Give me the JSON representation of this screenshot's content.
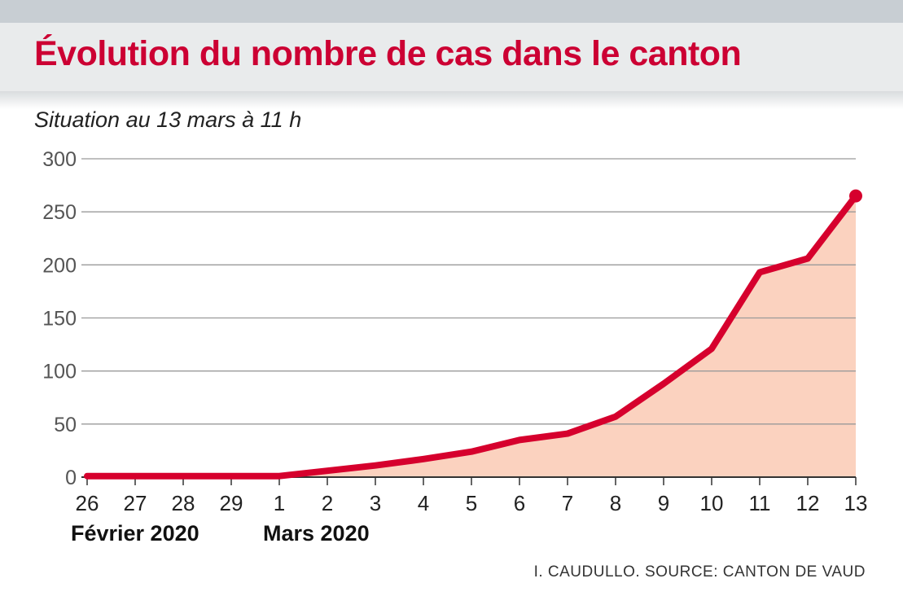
{
  "header": {
    "title": "Évolution du nombre de cas dans le canton",
    "subtitle": "Situation au 13 mars à 11 h"
  },
  "footer": {
    "source": "I. CAUDULLO. SOURCE: CANTON DE VAUD"
  },
  "colors": {
    "title": "#cc0033",
    "line": "#d6002d",
    "fill": "#fbd2bf",
    "grid": "#9a9a9a"
  },
  "chart_data": {
    "type": "area",
    "x": [
      "26",
      "27",
      "28",
      "29",
      "1",
      "2",
      "3",
      "4",
      "5",
      "6",
      "7",
      "8",
      "9",
      "10",
      "11",
      "12",
      "13"
    ],
    "values": [
      1,
      1,
      1,
      1,
      1,
      6,
      11,
      17,
      24,
      35,
      41,
      57,
      88,
      121,
      193,
      206,
      265
    ],
    "x_groups": [
      {
        "label": "Février 2020",
        "start": "26"
      },
      {
        "label": "Mars 2020",
        "start": "1"
      }
    ],
    "ylim": [
      0,
      300
    ],
    "yticks": [
      0,
      50,
      100,
      150,
      200,
      250,
      300
    ],
    "grid": true,
    "end_marker": true
  }
}
